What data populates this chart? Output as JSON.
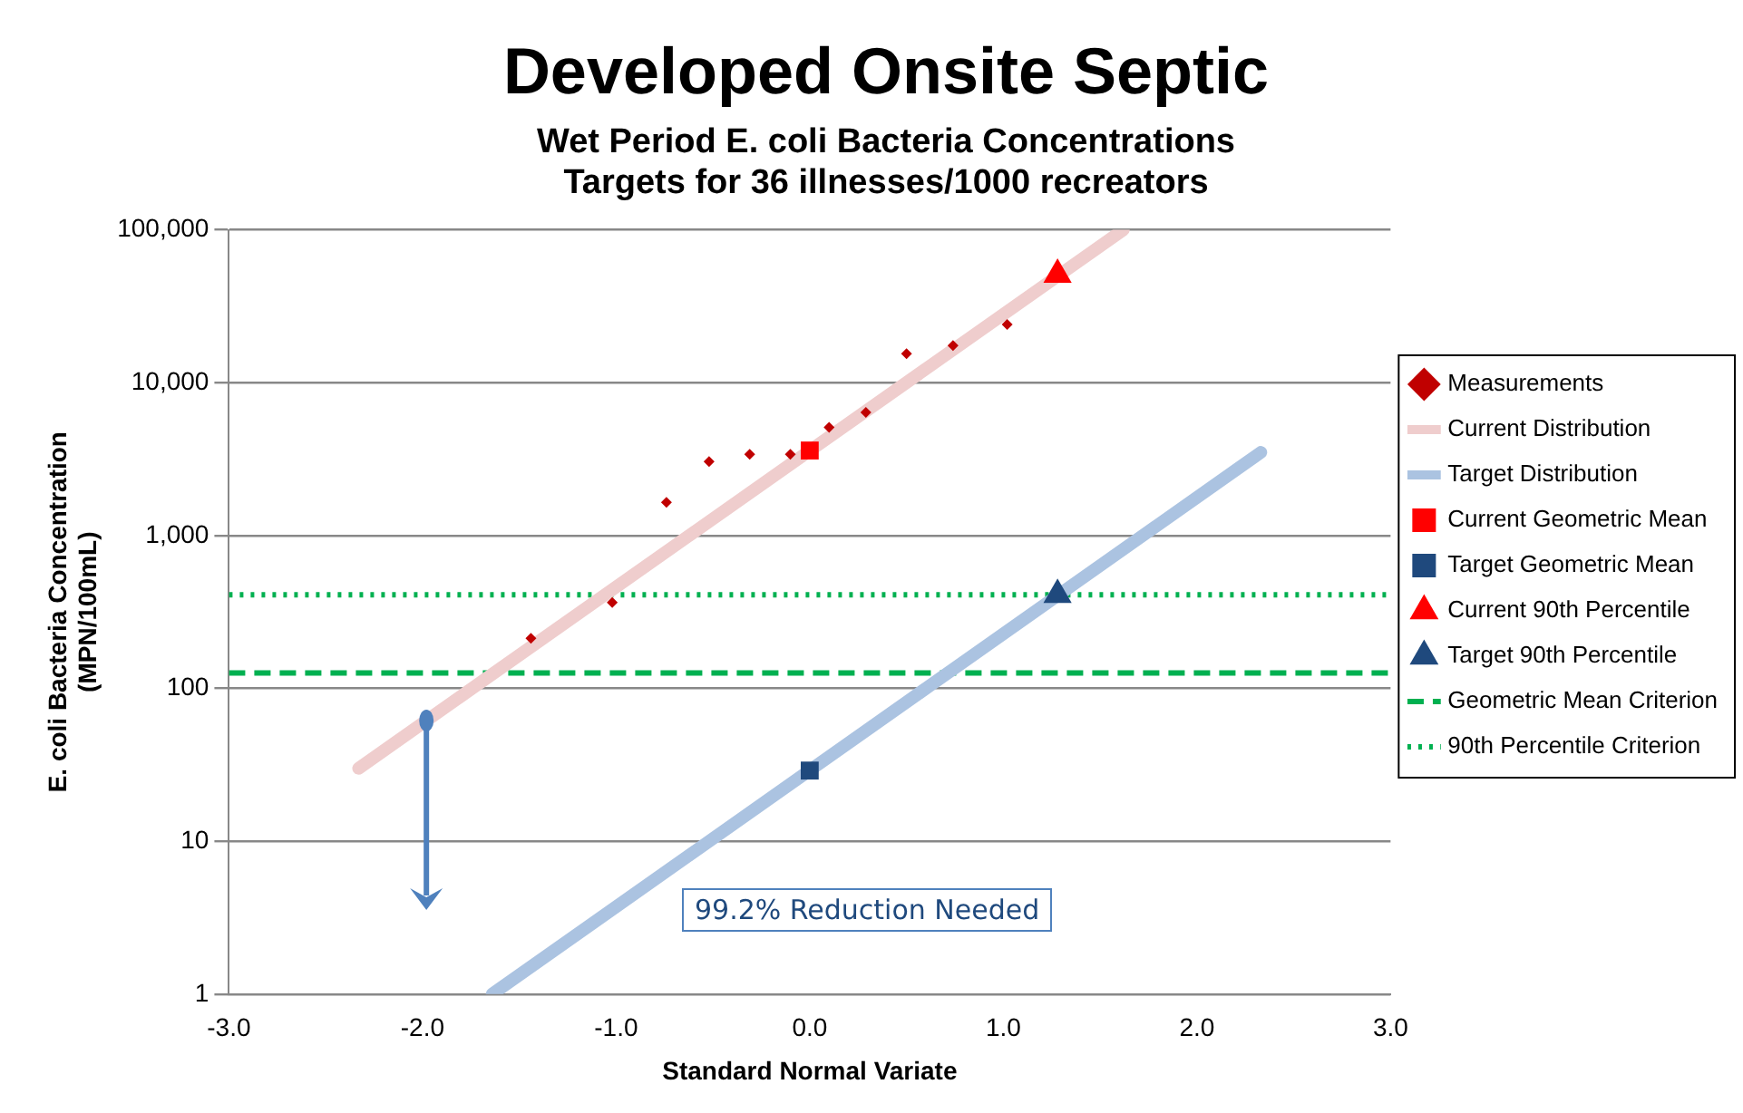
{
  "chart_data": {
    "type": "scatter",
    "title": "Developed Onsite Septic",
    "subtitle": "Wet Period E. coli Bacteria Concentrations\nTargets for 36 illnesses/1000 recreators",
    "xlabel": "Standard Normal Variate",
    "ylabel": "E. coli Bacteria Concentration\n(MPN/100mL)",
    "log": "y",
    "grid": "y",
    "legend": "right",
    "xlim": [
      -3,
      3
    ],
    "xticks": [
      {
        "value": -3,
        "label": "-3.0"
      },
      {
        "value": -2,
        "label": "-2.0"
      },
      {
        "value": -1,
        "label": "-1.0"
      },
      {
        "value": 0,
        "label": "0.0"
      },
      {
        "value": 1,
        "label": "1.0"
      },
      {
        "value": 2,
        "label": "2.0"
      },
      {
        "value": 3,
        "label": "3.0"
      }
    ],
    "ylim": [
      1,
      100000
    ],
    "yticks": [
      1,
      10,
      {
        "value": 100,
        "label": "100"
      },
      {
        "value": 1000,
        "label": "1,000"
      },
      {
        "value": 10000,
        "label": "10,000"
      },
      {
        "value": 100000,
        "label": "100,000"
      }
    ],
    "series": [
      {
        "name": "Measurements",
        "marker": "diamond",
        "color": "#c00000",
        "x": [
          -1.44,
          -1.02,
          -0.74,
          -0.52,
          -0.31,
          -0.1,
          0.1,
          0.29,
          0.5,
          0.74,
          1.02
        ],
        "values": [
          213,
          365,
          1650,
          3050,
          3400,
          3400,
          5100,
          6400,
          15500,
          17500,
          24000
        ]
      },
      {
        "name": "Current Distribution",
        "type": "line",
        "marker": "none",
        "color": "#efcdcd",
        "x": [
          -2.33,
          1.62
        ],
        "values": [
          30,
          100000
        ]
      },
      {
        "name": "Target Distribution",
        "type": "line",
        "marker": "none",
        "color": "#abc3e1",
        "x": [
          -1.64,
          2.33
        ],
        "values": [
          1,
          3500
        ]
      },
      {
        "name": "Current Geometric Mean",
        "marker": "square",
        "color": "#ff0000",
        "x": [
          0
        ],
        "values": [
          3600
        ]
      },
      {
        "name": "Target Geometric Mean",
        "marker": "square",
        "color": "#1f497d",
        "x": [
          0
        ],
        "values": [
          29
        ]
      },
      {
        "name": "Current 90th Percentile",
        "marker": "triangle",
        "color": "#ff0000",
        "x": [
          1.28
        ],
        "values": [
          51000
        ]
      },
      {
        "name": "Target 90th Percentile",
        "marker": "triangle",
        "color": "#1f497d",
        "x": [
          1.28
        ],
        "values": [
          410
        ]
      }
    ],
    "ref_lines": [
      {
        "axis": "y",
        "value": 126,
        "label": "Geometric Mean Criterion",
        "color": "#00b050",
        "line_style": "dashed"
      },
      {
        "axis": "y",
        "value": 410,
        "label": "90th Percentile Criterion",
        "color": "#00b050",
        "line_style": "dotted"
      }
    ],
    "annotations": [
      "99.2% Reduction Needed"
    ]
  }
}
